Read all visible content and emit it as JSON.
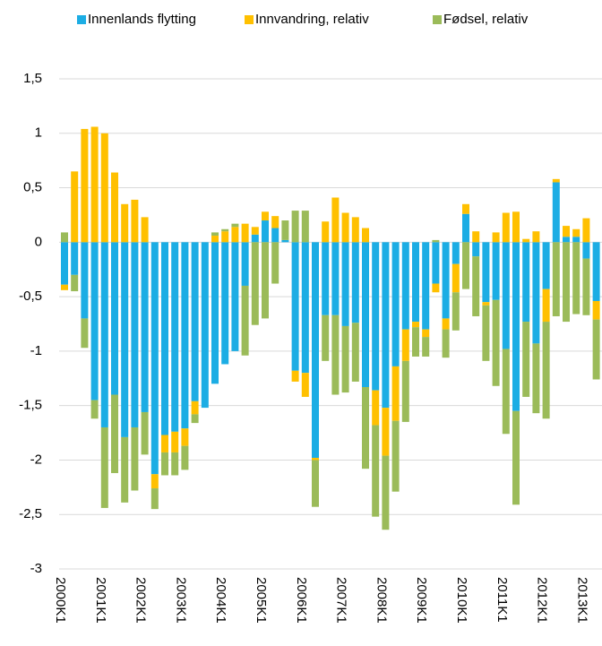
{
  "chart_data": {
    "type": "stacked_bar",
    "categories": [
      "2000K1",
      null,
      null,
      null,
      "2001K1",
      null,
      null,
      null,
      "2002K1",
      null,
      null,
      null,
      "2003K1",
      null,
      null,
      null,
      "2004K1",
      null,
      null,
      null,
      "2005K1",
      null,
      null,
      null,
      "2006K1",
      null,
      null,
      null,
      "2007K1",
      null,
      null,
      null,
      "2008K1",
      null,
      null,
      null,
      "2009K1",
      null,
      null,
      null,
      "2010K1",
      null,
      null,
      null,
      "2011K1",
      null,
      null,
      null,
      "2012K1",
      null,
      null,
      null,
      "2013K1",
      null
    ],
    "series": [
      {
        "name": "Innenlands flytting",
        "color": "#1cade4",
        "values": [
          -0.39,
          -0.3,
          -0.7,
          -1.45,
          -1.7,
          -1.4,
          -1.79,
          -1.7,
          -1.56,
          -2.13,
          -1.77,
          -1.74,
          -1.71,
          -1.46,
          -1.52,
          -1.3,
          -1.12,
          -1.0,
          -0.4,
          0.07,
          0.2,
          0.13,
          0.02,
          -1.18,
          -1.2,
          -1.98,
          -0.67,
          -0.67,
          -0.77,
          -0.74,
          -1.33,
          -1.36,
          -1.52,
          -1.14,
          -0.8,
          -0.73,
          -0.8,
          -0.38,
          -0.7,
          -0.2,
          0.26,
          -0.13,
          -0.55,
          -0.53,
          -0.98,
          -1.55,
          -0.73,
          -0.93,
          -0.43,
          0.55,
          0.05,
          0.05,
          -0.15,
          -0.54
        ]
      },
      {
        "name": "Innvandring, relativ",
        "color": "#ffc000",
        "values": [
          -0.05,
          0.65,
          1.04,
          1.06,
          1.0,
          0.64,
          0.35,
          0.39,
          0.23,
          -0.13,
          -0.16,
          -0.19,
          -0.16,
          -0.12,
          0,
          0.06,
          0.1,
          0.14,
          0.17,
          0.07,
          0.08,
          0.11,
          0,
          -0.1,
          -0.22,
          -0.02,
          0.19,
          0.41,
          0.27,
          0.23,
          0.13,
          -0.32,
          -0.44,
          -0.5,
          -0.29,
          -0.05,
          -0.07,
          -0.08,
          -0.1,
          -0.26,
          0.09,
          0.1,
          -0.03,
          0.09,
          0.27,
          0.28,
          0.03,
          0.1,
          -0.3,
          0.03,
          0.1,
          0.07,
          0.22,
          -0.17
        ]
      },
      {
        "name": "Fødsel, relativ",
        "color": "#9bbb59",
        "values": [
          0.09,
          -0.15,
          -0.27,
          -0.17,
          -0.74,
          -0.72,
          -0.6,
          -0.58,
          -0.39,
          -0.19,
          -0.21,
          -0.21,
          -0.22,
          -0.08,
          0,
          0.03,
          0.02,
          0.03,
          -0.64,
          -0.76,
          -0.7,
          -0.38,
          0.18,
          0.29,
          0.29,
          -0.43,
          -0.42,
          -0.73,
          -0.61,
          -0.54,
          -0.75,
          -0.84,
          -0.68,
          -0.65,
          -0.56,
          -0.27,
          -0.18,
          0.02,
          -0.26,
          -0.35,
          -0.43,
          -0.55,
          -0.51,
          -0.79,
          -0.78,
          -0.86,
          -0.69,
          -0.64,
          -0.89,
          -0.68,
          -0.73,
          -0.66,
          -0.52,
          -0.55
        ]
      }
    ],
    "ylim": [
      -3,
      1.5
    ],
    "yticks": [
      {
        "value": -3,
        "label": "-3"
      },
      {
        "value": -2.5,
        "label": "-2,5"
      },
      -2,
      {
        "value": -1.5,
        "label": "-1,5"
      },
      -1,
      {
        "value": -0.5,
        "label": "-0,5"
      },
      0,
      {
        "value": 0.5,
        "label": "0,5"
      },
      1,
      {
        "value": 1.5,
        "label": "1,5"
      }
    ],
    "grid": true,
    "legend": "top"
  }
}
